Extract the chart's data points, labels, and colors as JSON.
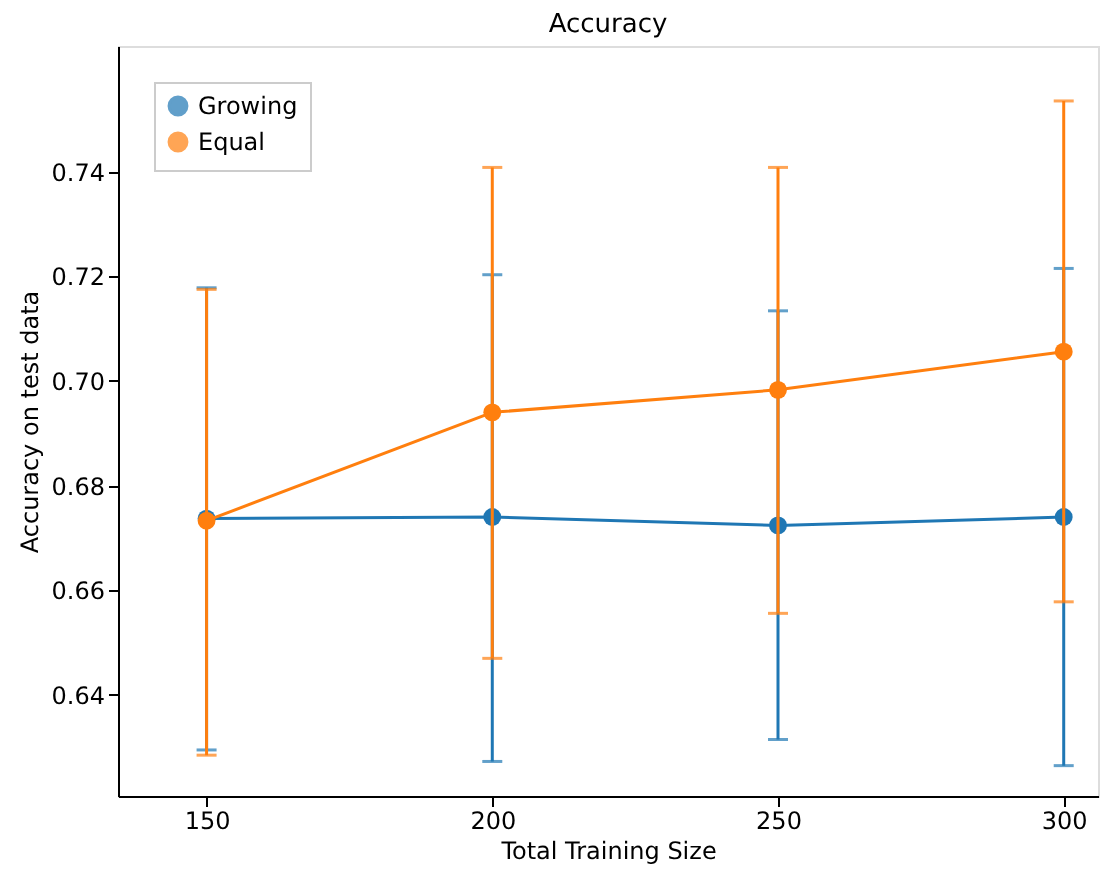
{
  "chart_data": {
    "type": "line",
    "title": "Accuracy",
    "xlabel": "Total Training Size",
    "ylabel": "Accuracy on test data",
    "x": [
      150,
      200,
      250,
      300
    ],
    "series": [
      {
        "name": "Growing",
        "color": "#1f77b4",
        "values": [
          0.6737,
          0.674,
          0.6724,
          0.674
        ],
        "errors": [
          [
            0.6295,
            0.7178
          ],
          [
            0.6273,
            0.7203
          ],
          [
            0.6315,
            0.7134
          ],
          [
            0.6265,
            0.7215
          ]
        ]
      },
      {
        "name": "Equal",
        "color": "#ff7f0e",
        "values": [
          0.6733,
          0.694,
          0.6983,
          0.7056
        ],
        "errors": [
          [
            0.6285,
            0.7175
          ],
          [
            0.647,
            0.7408
          ],
          [
            0.6556,
            0.7408
          ],
          [
            0.6578,
            0.7535
          ]
        ]
      }
    ],
    "xlim": [
      134.5,
      306
    ],
    "xticks": [
      150,
      200,
      250,
      300
    ],
    "ylim": [
      0.6207,
      0.764
    ],
    "yticks": [
      {
        "value": 0.64,
        "label": "0.64"
      },
      {
        "value": 0.66,
        "label": "0.66"
      },
      {
        "value": 0.68,
        "label": "0.68"
      },
      {
        "value": 0.7,
        "label": "0.70"
      },
      {
        "value": 0.72,
        "label": "0.72"
      },
      {
        "value": 0.74,
        "label": "0.74"
      }
    ],
    "grid": false,
    "legend": "top left",
    "marker": "circle",
    "line_style": "solid"
  }
}
